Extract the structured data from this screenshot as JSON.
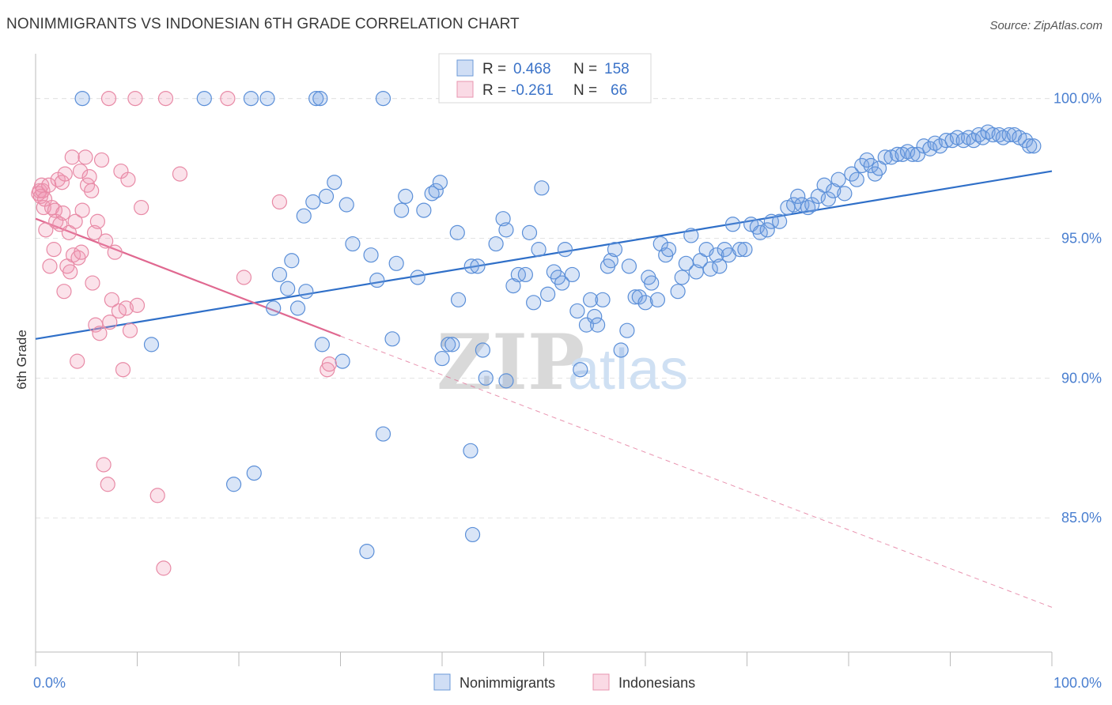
{
  "title": "NONIMMIGRANTS VS INDONESIAN 6TH GRADE CORRELATION CHART",
  "source": "Source: ZipAtlas.com",
  "watermark": {
    "zip": "ZIP",
    "atlas": "atlas"
  },
  "colors": {
    "blue": "#5b8fd8",
    "blue_fill": "rgba(120,160,225,0.28)",
    "blue_line": "#2f6fc8",
    "pink": "#e88aa6",
    "pink_fill": "rgba(240,150,180,0.28)",
    "pink_line": "#e06890",
    "grid": "#e3e3e3",
    "axis": "#bbbbbb"
  },
  "legend": {
    "rows": [
      {
        "r_label": "R =",
        "r_value": "0.468",
        "n_label": "N =",
        "n_value": "158",
        "series": "blue"
      },
      {
        "r_label": "R =",
        "r_value": "-0.261",
        "n_label": "N =",
        "n_value": "66",
        "series": "pink"
      }
    ]
  },
  "bottom_legend": [
    "Nonimmigrants",
    "Indonesians"
  ],
  "chart_data": {
    "type": "scatter",
    "title": "NONIMMIGRANTS VS INDONESIAN 6TH GRADE CORRELATION CHART",
    "xlabel": "",
    "ylabel": "6th Grade",
    "xlim": [
      0,
      100
    ],
    "ylim": [
      80.2,
      101.6
    ],
    "x_tick_labels": [
      "0.0%",
      "100.0%"
    ],
    "y_ticks": [
      85,
      90,
      95,
      100
    ],
    "y_tick_labels": [
      "85.0%",
      "90.0%",
      "95.0%",
      "100.0%"
    ],
    "grid": true,
    "legend_position": "top-center",
    "series": [
      {
        "name": "Nonimmigrants",
        "color": "#5b8fd8",
        "trend": {
          "x": [
            0,
            100
          ],
          "y": [
            91.4,
            97.4
          ],
          "dashed_until": 100
        },
        "points": [
          [
            4.6,
            100.0
          ],
          [
            16.6,
            100.0
          ],
          [
            21.2,
            100.0
          ],
          [
            22.8,
            100.0
          ],
          [
            27.6,
            100.0
          ],
          [
            28.0,
            100.0
          ],
          [
            34.2,
            100.0
          ],
          [
            11.4,
            91.2
          ],
          [
            19.5,
            86.2
          ],
          [
            21.5,
            86.6
          ],
          [
            23.4,
            92.5
          ],
          [
            24.0,
            93.7
          ],
          [
            24.8,
            93.2
          ],
          [
            25.2,
            94.2
          ],
          [
            25.8,
            92.5
          ],
          [
            26.6,
            93.1
          ],
          [
            26.4,
            95.8
          ],
          [
            27.3,
            96.3
          ],
          [
            28.2,
            91.2
          ],
          [
            28.6,
            96.5
          ],
          [
            29.4,
            97.0
          ],
          [
            30.2,
            90.6
          ],
          [
            30.6,
            96.2
          ],
          [
            31.2,
            94.8
          ],
          [
            32.6,
            83.8
          ],
          [
            33.0,
            94.4
          ],
          [
            33.6,
            93.5
          ],
          [
            35.1,
            91.4
          ],
          [
            34.2,
            88.0
          ],
          [
            35.5,
            94.1
          ],
          [
            36.0,
            96.0
          ],
          [
            36.4,
            96.5
          ],
          [
            37.6,
            93.6
          ],
          [
            38.2,
            96.0
          ],
          [
            39.0,
            96.6
          ],
          [
            39.4,
            96.7
          ],
          [
            39.8,
            97.0
          ],
          [
            40.0,
            90.7
          ],
          [
            40.6,
            91.2
          ],
          [
            41.0,
            91.2
          ],
          [
            41.5,
            95.2
          ],
          [
            41.6,
            92.8
          ],
          [
            42.8,
            87.4
          ],
          [
            43.0,
            84.4
          ],
          [
            42.9,
            94.0
          ],
          [
            43.5,
            94.0
          ],
          [
            44.0,
            91.0
          ],
          [
            44.3,
            90.0
          ],
          [
            45.3,
            94.8
          ],
          [
            46.0,
            95.7
          ],
          [
            46.3,
            95.3
          ],
          [
            46.3,
            89.9
          ],
          [
            47.0,
            93.3
          ],
          [
            47.5,
            93.7
          ],
          [
            48.2,
            93.7
          ],
          [
            48.6,
            95.2
          ],
          [
            49.0,
            92.7
          ],
          [
            49.5,
            94.6
          ],
          [
            49.8,
            96.8
          ],
          [
            50.4,
            93.0
          ],
          [
            51.0,
            93.8
          ],
          [
            51.4,
            93.6
          ],
          [
            51.8,
            93.4
          ],
          [
            52.1,
            94.6
          ],
          [
            52.8,
            93.7
          ],
          [
            53.3,
            92.4
          ],
          [
            53.6,
            90.3
          ],
          [
            54.2,
            91.9
          ],
          [
            54.6,
            92.8
          ],
          [
            55.0,
            92.2
          ],
          [
            55.3,
            91.9
          ],
          [
            55.8,
            92.8
          ],
          [
            56.3,
            94.0
          ],
          [
            56.6,
            94.2
          ],
          [
            57.0,
            94.6
          ],
          [
            57.6,
            91.0
          ],
          [
            58.2,
            91.7
          ],
          [
            58.4,
            94.0
          ],
          [
            59.0,
            92.9
          ],
          [
            59.4,
            92.9
          ],
          [
            60.0,
            92.7
          ],
          [
            60.3,
            93.6
          ],
          [
            60.6,
            93.4
          ],
          [
            61.2,
            92.8
          ],
          [
            61.5,
            94.8
          ],
          [
            62.0,
            94.4
          ],
          [
            62.3,
            94.6
          ],
          [
            63.2,
            93.1
          ],
          [
            63.6,
            93.6
          ],
          [
            64.0,
            94.1
          ],
          [
            64.5,
            95.1
          ],
          [
            65.0,
            93.8
          ],
          [
            65.4,
            94.2
          ],
          [
            66.0,
            94.6
          ],
          [
            66.4,
            93.9
          ],
          [
            67.0,
            94.4
          ],
          [
            67.3,
            94.0
          ],
          [
            67.8,
            94.6
          ],
          [
            68.2,
            94.4
          ],
          [
            68.6,
            95.5
          ],
          [
            69.3,
            94.6
          ],
          [
            69.8,
            94.6
          ],
          [
            70.4,
            95.5
          ],
          [
            71.0,
            95.4
          ],
          [
            71.3,
            95.2
          ],
          [
            72.0,
            95.3
          ],
          [
            72.4,
            95.6
          ],
          [
            73.2,
            95.6
          ],
          [
            74.0,
            96.1
          ],
          [
            74.6,
            96.2
          ],
          [
            75.0,
            96.5
          ],
          [
            75.4,
            96.2
          ],
          [
            76.0,
            96.1
          ],
          [
            76.4,
            96.2
          ],
          [
            77.0,
            96.5
          ],
          [
            77.6,
            96.9
          ],
          [
            78.0,
            96.4
          ],
          [
            78.5,
            96.7
          ],
          [
            79.0,
            97.1
          ],
          [
            79.6,
            96.6
          ],
          [
            80.3,
            97.3
          ],
          [
            80.8,
            97.1
          ],
          [
            81.3,
            97.6
          ],
          [
            81.8,
            97.8
          ],
          [
            82.2,
            97.6
          ],
          [
            82.6,
            97.3
          ],
          [
            83.0,
            97.5
          ],
          [
            83.6,
            97.9
          ],
          [
            84.2,
            97.9
          ],
          [
            84.8,
            98.0
          ],
          [
            85.3,
            98.0
          ],
          [
            85.8,
            98.1
          ],
          [
            86.3,
            98.0
          ],
          [
            86.8,
            98.0
          ],
          [
            87.4,
            98.3
          ],
          [
            88.0,
            98.2
          ],
          [
            88.5,
            98.4
          ],
          [
            89.0,
            98.3
          ],
          [
            89.6,
            98.5
          ],
          [
            90.2,
            98.5
          ],
          [
            90.7,
            98.6
          ],
          [
            91.3,
            98.5
          ],
          [
            91.8,
            98.6
          ],
          [
            92.3,
            98.5
          ],
          [
            92.8,
            98.7
          ],
          [
            93.2,
            98.6
          ],
          [
            93.7,
            98.8
          ],
          [
            94.2,
            98.7
          ],
          [
            94.8,
            98.7
          ],
          [
            95.2,
            98.6
          ],
          [
            95.8,
            98.7
          ],
          [
            96.3,
            98.7
          ],
          [
            96.8,
            98.6
          ],
          [
            97.4,
            98.5
          ],
          [
            97.8,
            98.3
          ],
          [
            98.2,
            98.3
          ]
        ]
      },
      {
        "name": "Indonesians",
        "color": "#e88aa6",
        "trend": {
          "x": [
            0,
            30
          ],
          "y": [
            95.7,
            91.5
          ],
          "dash_x": [
            30,
            100
          ],
          "dash_y": [
            91.5,
            81.8
          ]
        },
        "points": [
          [
            7.2,
            100.0
          ],
          [
            9.8,
            100.0
          ],
          [
            12.8,
            100.0
          ],
          [
            18.9,
            100.0
          ],
          [
            0.3,
            96.6
          ],
          [
            0.4,
            96.7
          ],
          [
            0.5,
            96.5
          ],
          [
            0.6,
            96.9
          ],
          [
            0.7,
            96.7
          ],
          [
            0.8,
            96.1
          ],
          [
            0.9,
            96.4
          ],
          [
            1.0,
            95.3
          ],
          [
            1.3,
            96.9
          ],
          [
            1.4,
            94.0
          ],
          [
            1.6,
            96.1
          ],
          [
            1.8,
            94.6
          ],
          [
            1.9,
            96.0
          ],
          [
            2.0,
            95.6
          ],
          [
            2.2,
            97.1
          ],
          [
            2.4,
            95.5
          ],
          [
            2.6,
            97.0
          ],
          [
            2.7,
            95.9
          ],
          [
            2.8,
            93.1
          ],
          [
            2.9,
            97.3
          ],
          [
            3.1,
            94.0
          ],
          [
            3.3,
            95.2
          ],
          [
            3.4,
            93.8
          ],
          [
            3.6,
            97.9
          ],
          [
            3.7,
            94.4
          ],
          [
            3.9,
            95.6
          ],
          [
            4.1,
            90.6
          ],
          [
            4.2,
            94.3
          ],
          [
            4.4,
            97.4
          ],
          [
            4.5,
            94.5
          ],
          [
            4.6,
            96.0
          ],
          [
            4.9,
            97.9
          ],
          [
            5.1,
            96.9
          ],
          [
            5.3,
            97.2
          ],
          [
            5.5,
            96.7
          ],
          [
            5.6,
            93.4
          ],
          [
            5.8,
            95.2
          ],
          [
            5.9,
            91.9
          ],
          [
            6.1,
            95.6
          ],
          [
            6.3,
            91.6
          ],
          [
            6.5,
            97.8
          ],
          [
            6.7,
            86.9
          ],
          [
            6.9,
            94.9
          ],
          [
            7.1,
            86.2
          ],
          [
            7.3,
            92.0
          ],
          [
            7.5,
            92.8
          ],
          [
            7.8,
            94.5
          ],
          [
            8.2,
            92.4
          ],
          [
            8.4,
            97.4
          ],
          [
            8.6,
            90.3
          ],
          [
            8.9,
            92.5
          ],
          [
            9.1,
            97.1
          ],
          [
            9.3,
            91.7
          ],
          [
            10.0,
            92.6
          ],
          [
            10.4,
            96.1
          ],
          [
            12.0,
            85.8
          ],
          [
            12.6,
            83.2
          ],
          [
            14.2,
            97.3
          ],
          [
            20.5,
            93.6
          ],
          [
            24.0,
            96.3
          ],
          [
            28.7,
            90.3
          ],
          [
            28.9,
            90.5
          ]
        ]
      }
    ]
  }
}
